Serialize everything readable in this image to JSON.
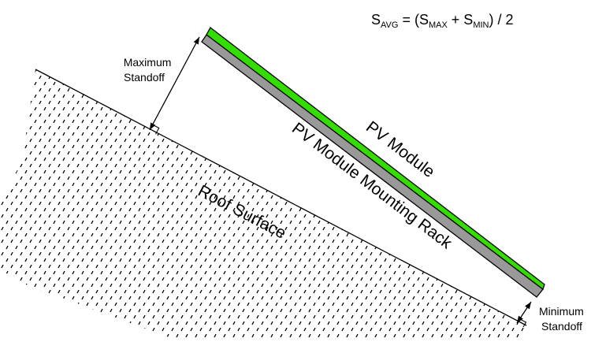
{
  "diagram": {
    "formula": {
      "s1": "S",
      "sub1": "AVG",
      "t2": " = (S",
      "sub2": "MAX",
      "t3": " + S",
      "sub3": "MIN",
      "t4": ") / 2"
    },
    "max_standoff": {
      "line1": "Maximum",
      "line2": "Standoff"
    },
    "min_standoff": {
      "line1": "Minimum",
      "line2": "Standoff"
    },
    "pv_module": "PV Module",
    "mounting_rack": "PV Module Mounting Rack",
    "roof_surface": "Roof Surface",
    "colors": {
      "module": "#33dd00",
      "rack": "#999999",
      "outline": "#000000"
    }
  }
}
